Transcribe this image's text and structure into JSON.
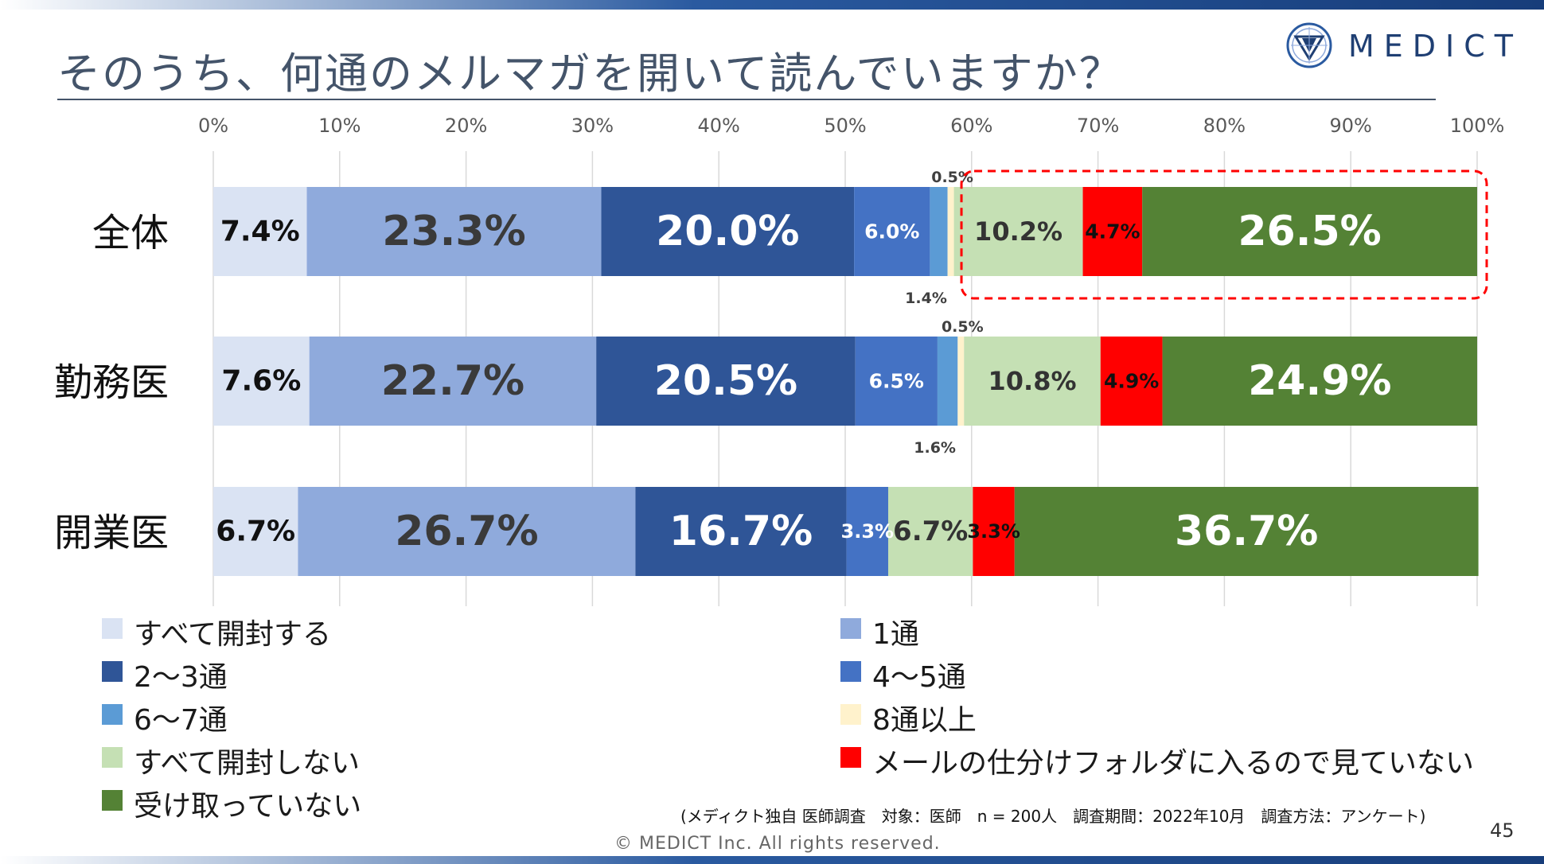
{
  "header": {
    "title": "そのうち、何通のメルマガを開いて読んでいますか？",
    "logo_text": "MEDICT"
  },
  "chart_data": {
    "type": "bar",
    "orientation": "horizontal",
    "stacked": true,
    "xlim": [
      0,
      100
    ],
    "x_ticks": [
      "0%",
      "10%",
      "20%",
      "30%",
      "40%",
      "50%",
      "60%",
      "70%",
      "80%",
      "90%",
      "100%"
    ],
    "categories": [
      "全体",
      "勤務医",
      "開業医"
    ],
    "series": [
      {
        "name": "すべて開封する",
        "color": "#dae3f3",
        "values": [
          7.4,
          7.6,
          6.7
        ],
        "labels": [
          "7.4%",
          "7.6%",
          "6.7%"
        ]
      },
      {
        "name": "1通",
        "color": "#8faadc",
        "values": [
          23.3,
          22.7,
          26.7
        ],
        "labels": [
          "23.3%",
          "22.7%",
          "26.7%"
        ]
      },
      {
        "name": "2〜3通",
        "color": "#2f5597",
        "values": [
          20.0,
          20.5,
          16.7
        ],
        "labels": [
          "20.0%",
          "20.5%",
          "16.7%"
        ]
      },
      {
        "name": "4〜5通",
        "color": "#4472c4",
        "values": [
          6.0,
          6.5,
          3.3
        ],
        "labels": [
          "6.0%",
          "6.5%",
          "3.3%"
        ]
      },
      {
        "name": "6〜7通",
        "color": "#5b9bd5",
        "values": [
          1.4,
          1.6,
          0
        ],
        "labels": [
          "1.4%",
          "1.6%",
          ""
        ]
      },
      {
        "name": "8通以上",
        "color": "#fff2cc",
        "values": [
          0.5,
          0.5,
          0
        ],
        "labels": [
          "0.5%",
          "0.5%",
          ""
        ]
      },
      {
        "name": "すべて開封しない",
        "color": "#c5e0b4",
        "values": [
          10.2,
          10.8,
          6.7
        ],
        "labels": [
          "10.2%",
          "10.8%",
          "6.7%"
        ]
      },
      {
        "name": "メールの仕分けフォルダに入るので見ていない",
        "color": "#ff0000",
        "values": [
          4.7,
          4.9,
          3.3
        ],
        "labels": [
          "4.7%",
          "4.9%",
          "3.3%"
        ]
      },
      {
        "name": "受け取っていない",
        "color": "#548235",
        "values": [
          26.5,
          24.9,
          36.7
        ],
        "labels": [
          "26.5%",
          "24.9%",
          "36.7%"
        ]
      }
    ],
    "highlight": {
      "row": "全体",
      "from_value": 59.7,
      "to_value": 100,
      "style": "red dashed box"
    }
  },
  "legend": {
    "items": [
      {
        "label": "すべて開封する",
        "color": "#dae3f3"
      },
      {
        "label": "1通",
        "color": "#8faadc"
      },
      {
        "label": "2〜3通",
        "color": "#2f5597"
      },
      {
        "label": "4〜5通",
        "color": "#4472c4"
      },
      {
        "label": "6〜7通",
        "color": "#5b9bd5"
      },
      {
        "label": "8通以上",
        "color": "#fff2cc"
      },
      {
        "label": "すべて開封しない",
        "color": "#c5e0b4"
      },
      {
        "label": "メールの仕分けフォルダに入るので見ていない",
        "color": "#ff0000"
      },
      {
        "label": "受け取っていない",
        "color": "#548235"
      }
    ]
  },
  "footer": {
    "source": "(メディクト独自 医師調査　対象：医師　n = 200人　調査期間：2022年10月　調査方法：アンケート)",
    "copyright": "© MEDICT Inc.  All rights reserved.",
    "page_number": "45"
  }
}
